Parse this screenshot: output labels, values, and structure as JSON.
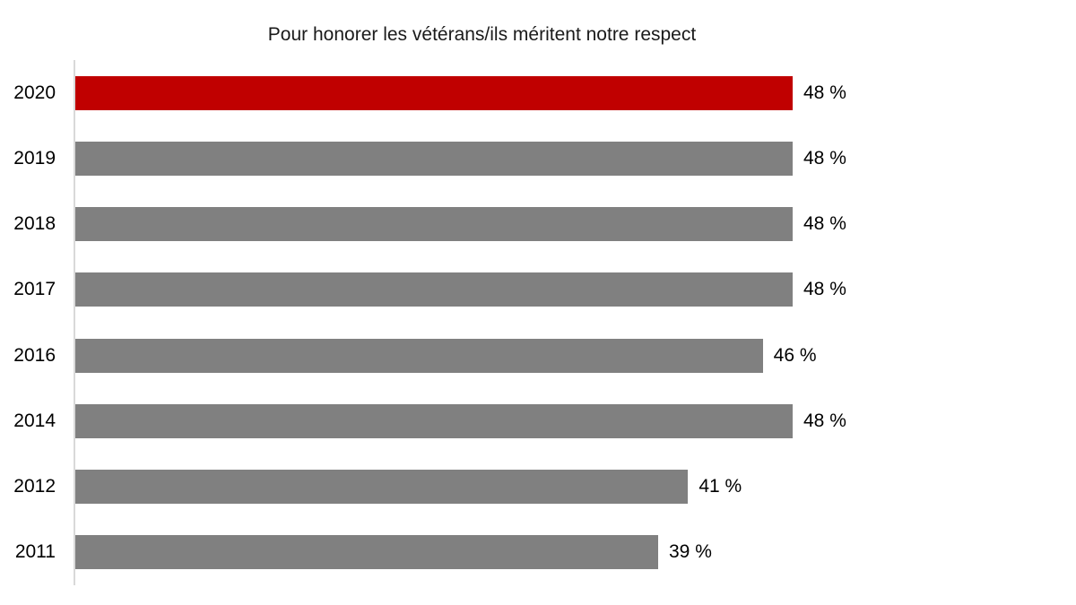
{
  "chart_data": {
    "type": "bar",
    "orientation": "horizontal",
    "title": "Pour honorer les vétérans/ils méritent notre respect",
    "categories": [
      "2020",
      "2019",
      "2018",
      "2017",
      "2016",
      "2014",
      "2012",
      "2011"
    ],
    "values": [
      48,
      48,
      48,
      48,
      46,
      48,
      41,
      39
    ],
    "value_labels": [
      "48 %",
      "48 %",
      "48 %",
      "48 %",
      "46 %",
      "48 %",
      "41 %",
      "39 %"
    ],
    "xlabel": "",
    "ylabel": "",
    "xlim": [
      0,
      48
    ],
    "grid": false,
    "legend": "none",
    "highlight_index": 0,
    "colors": {
      "highlight_bar": "#c00000",
      "default_bar": "#808080",
      "axis_line": "#d9d9d9",
      "text": "#000000",
      "background": "#ffffff"
    }
  }
}
